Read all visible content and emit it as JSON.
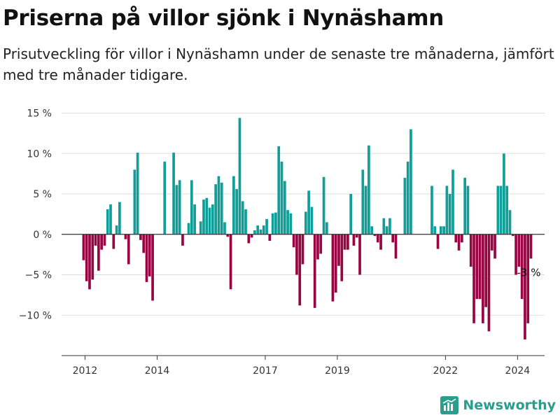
{
  "header": {
    "title": "Priserna på villor sjönk i Nynäshamn",
    "subtitle": "Prisutveckling för villor i Nynäshamn under de senaste tre månaderna, jämfört med tre månader tidigare."
  },
  "branding": {
    "logo_text": "Newsworthy",
    "logo_icon": "bar-chart-logo-icon",
    "color": "#2a9d8f"
  },
  "colors": {
    "positive": "#0f9f98",
    "negative": "#980543",
    "grid": "#dddddd",
    "zero": "#333333"
  },
  "chart_data": {
    "type": "bar",
    "y_unit": "%",
    "ylim": [
      -15,
      16
    ],
    "y_ticks": [
      15,
      10,
      5,
      0,
      -5,
      -10
    ],
    "y_tick_labels": [
      "15 %",
      "10 %",
      "5 %",
      "0 %",
      "−5 %",
      "−10 %"
    ],
    "x_range": [
      2011.35,
      2024.75
    ],
    "x_ticks": [
      2012,
      2014,
      2017,
      2019,
      2022,
      2024
    ],
    "x_tick_labels": [
      "2012",
      "2014",
      "2017",
      "2019",
      "2022",
      "2024"
    ],
    "grid": true,
    "last_value_label": "-3 %",
    "series": [
      {
        "start": 2011.96,
        "step": 0.0833,
        "values": [
          -3.2,
          -5.8,
          -6.8,
          -5.6,
          -1.4,
          -4.5,
          -1.9,
          -1.4,
          3.1,
          3.7,
          -1.8,
          1.1,
          4.0,
          0,
          -0.6,
          -3.7,
          0,
          8.0,
          10.1,
          -0.7,
          -2.3,
          -5.9,
          -5.2,
          -8.2,
          0,
          0,
          0,
          9.0,
          0,
          0,
          10.1,
          6.1,
          6.7,
          -1.4,
          0,
          1.4,
          6.7,
          3.7,
          0,
          1.6,
          4.3,
          4.5,
          3.3,
          3.7,
          6.2,
          7.2,
          6.4,
          1.5,
          -0.3,
          -6.8,
          7.2,
          5.6,
          14.4,
          4.1,
          3.1,
          -1.1,
          -0.4,
          0.5,
          1.1,
          0.6,
          1.1,
          1.9,
          -0.8,
          2.6,
          2.7,
          10.9,
          9.0,
          6.6,
          3.0,
          2.6,
          -1.6,
          -5.0,
          -8.8,
          -3.7,
          2.8,
          5.4,
          3.4,
          -9.1,
          -3.1,
          -2.4,
          7.1,
          1.5,
          0,
          -8.3,
          -7.2,
          -3.9,
          -5.8,
          -1.9,
          -1.9,
          5.0,
          -1.4,
          -0.4,
          -5.0,
          8.0,
          6.0,
          11.0,
          1.0,
          -0.2,
          -1.0,
          -1.9,
          2.0,
          1.0,
          2.0,
          -1.0,
          -3.0,
          0,
          0,
          7.0,
          9.0,
          13.0,
          0,
          0,
          0,
          0,
          0,
          0,
          6.0,
          1.0,
          -1.8,
          1.0,
          1.0,
          6.0,
          5.0,
          8.0,
          -1.0,
          -2.0,
          -1.0,
          7.0,
          6.0,
          -4.0,
          -11.0,
          -8.0,
          -8.0,
          -11.0,
          -9.0,
          -12.0,
          -2.0,
          -3.0,
          6.0,
          6.0,
          10.0,
          6.0,
          3.0,
          -0.2,
          -5.0,
          -4.0,
          -8.0,
          -13.0,
          -11.0,
          -3.0
        ]
      }
    ]
  }
}
